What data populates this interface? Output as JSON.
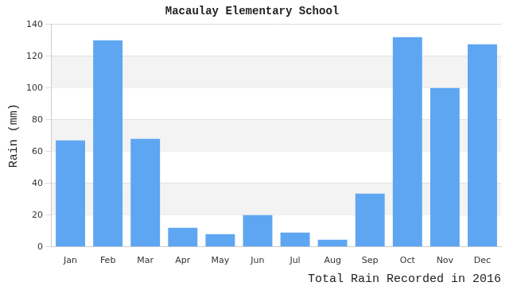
{
  "chart_data": {
    "type": "bar",
    "title": "Macaulay Elementary School",
    "x_label": "Total Rain Recorded in 2016",
    "y_label": "Rain (mm)",
    "categories": [
      "Jan",
      "Feb",
      "Mar",
      "Apr",
      "May",
      "Jun",
      "Jul",
      "Aug",
      "Sep",
      "Oct",
      "Nov",
      "Dec"
    ],
    "values": [
      67,
      130,
      68,
      12,
      8,
      20,
      9,
      4.5,
      33.5,
      132,
      100,
      127.5
    ],
    "color": "#5ea6f2",
    "ylim": [
      0,
      140
    ],
    "yticks": [
      0,
      20,
      40,
      60,
      80,
      100,
      120,
      140
    ],
    "grid": true
  }
}
